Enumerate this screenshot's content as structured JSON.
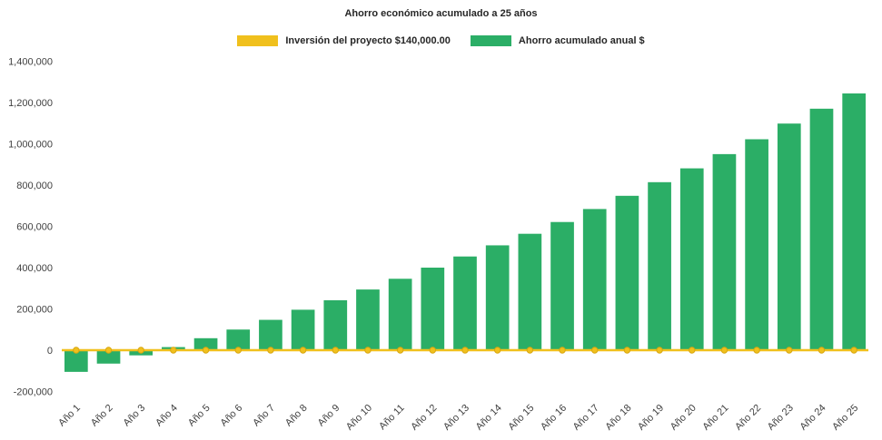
{
  "page": {
    "background": "#ffffff",
    "text_color": "#404040"
  },
  "chart_data": {
    "type": "bar",
    "title": "Ahorro económico acumulado a 25 años",
    "xlabel": "",
    "ylabel": "",
    "ylim": [
      -200000,
      1400000
    ],
    "ytick_step": 200000,
    "grid": false,
    "legend_position": "top",
    "categories": [
      "Año 1",
      "Año 2",
      "Año 3",
      "Año 4",
      "Año 5",
      "Año 6",
      "Año 7",
      "Año 8",
      "Año 9",
      "Año 10",
      "Año 11",
      "Año 12",
      "Año 13",
      "Año 14",
      "Año 15",
      "Año 16",
      "Año 17",
      "Año 18",
      "Año 19",
      "Año 20",
      "Año 21",
      "Año 22",
      "Año 23",
      "Año 24",
      "Año 25"
    ],
    "series": [
      {
        "name": "Inversión del proyecto $140,000.00",
        "type": "line",
        "color": "#f0c01d",
        "marker_stroke": "#d9a60f",
        "values": [
          0,
          0,
          0,
          0,
          0,
          0,
          0,
          0,
          0,
          0,
          0,
          0,
          0,
          0,
          0,
          0,
          0,
          0,
          0,
          0,
          0,
          0,
          0,
          0,
          0
        ]
      },
      {
        "name": "Ahorro acumulado anual $",
        "type": "bar",
        "color": "#2bae66",
        "values": [
          -105000,
          -65000,
          -25000,
          15000,
          58000,
          100000,
          147000,
          196000,
          242000,
          294000,
          346000,
          400000,
          454000,
          508000,
          564000,
          621000,
          684000,
          748000,
          814000,
          881000,
          950000,
          1022000,
          1098000,
          1170000,
          1244000
        ]
      }
    ]
  }
}
